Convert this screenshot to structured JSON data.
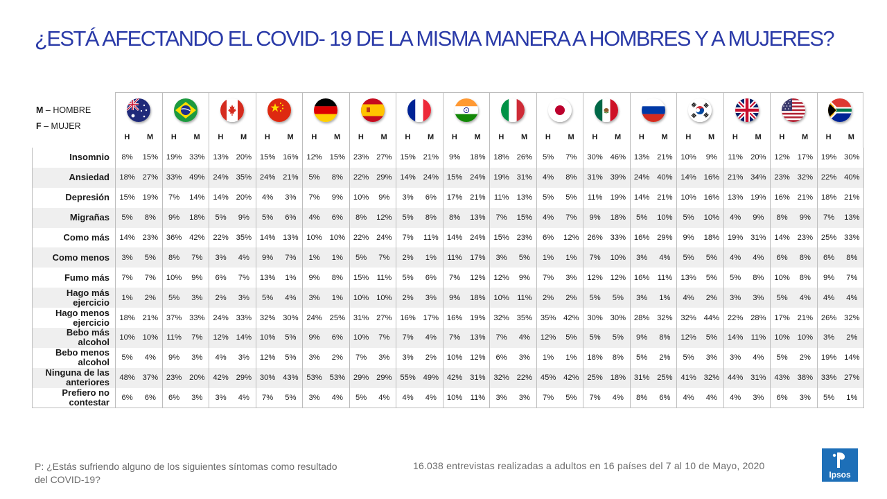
{
  "title": "¿ESTÁ AFECTANDO EL COVID- 19 DE LA MISMA MANERA  A HOMBRES Y A MUJERES?",
  "legend": {
    "m_key": "M",
    "m_text": " – HOMBRE",
    "f_key": "F",
    "f_text": " – MUJER"
  },
  "question": "P: ¿Estás sufriendo alguno de los siguientes síntomas como resultado del COVID-19?",
  "note": "16.038 entrevistas  realizadas a adultos  en 16 países del 7 al 10 de Mayo, 2020",
  "logo_text": "Ipsos",
  "colors": {
    "title": "#2a3aa8",
    "row_alt": "#efefef",
    "logo": "#1d6fb8"
  },
  "chart_data": {
    "type": "table",
    "countries": [
      "Australia",
      "Brazil",
      "Canada",
      "China",
      "Germany",
      "Spain",
      "France",
      "India",
      "Italy",
      "Japan",
      "Mexico",
      "Russia",
      "South Korea",
      "United Kingdom",
      "United States",
      "South Africa"
    ],
    "flags": [
      "australia-flag-icon",
      "brazil-flag-icon",
      "canada-flag-icon",
      "china-flag-icon",
      "germany-flag-icon",
      "spain-flag-icon",
      "france-flag-icon",
      "india-flag-icon",
      "italy-flag-icon",
      "japan-flag-icon",
      "mexico-flag-icon",
      "russia-flag-icon",
      "south-korea-flag-icon",
      "uk-flag-icon",
      "usa-flag-icon",
      "south-africa-flag-icon"
    ],
    "sub_headers": [
      "H",
      "M"
    ],
    "rows": [
      {
        "label": "Insomnio",
        "values": [
          "8%",
          "15%",
          "19%",
          "33%",
          "13%",
          "20%",
          "15%",
          "16%",
          "12%",
          "15%",
          "23%",
          "27%",
          "15%",
          "21%",
          "9%",
          "18%",
          "18%",
          "26%",
          "5%",
          "7%",
          "30%",
          "46%",
          "13%",
          "21%",
          "10%",
          "9%",
          "11%",
          "20%",
          "12%",
          "17%",
          "19%",
          "30%"
        ]
      },
      {
        "label": "Ansiedad",
        "values": [
          "18%",
          "27%",
          "33%",
          "49%",
          "24%",
          "35%",
          "24%",
          "21%",
          "5%",
          "8%",
          "22%",
          "29%",
          "14%",
          "24%",
          "15%",
          "24%",
          "19%",
          "31%",
          "4%",
          "8%",
          "31%",
          "39%",
          "24%",
          "40%",
          "14%",
          "16%",
          "21%",
          "34%",
          "23%",
          "32%",
          "22%",
          "40%"
        ]
      },
      {
        "label": "Depresión",
        "values": [
          "15%",
          "19%",
          "7%",
          "14%",
          "14%",
          "20%",
          "4%",
          "3%",
          "7%",
          "9%",
          "10%",
          "9%",
          "3%",
          "6%",
          "17%",
          "21%",
          "11%",
          "13%",
          "5%",
          "5%",
          "11%",
          "19%",
          "14%",
          "21%",
          "10%",
          "16%",
          "13%",
          "19%",
          "16%",
          "21%",
          "18%",
          "21%"
        ]
      },
      {
        "label": "Migrañas",
        "values": [
          "5%",
          "8%",
          "9%",
          "18%",
          "5%",
          "9%",
          "5%",
          "6%",
          "4%",
          "6%",
          "8%",
          "12%",
          "5%",
          "8%",
          "8%",
          "13%",
          "7%",
          "15%",
          "4%",
          "7%",
          "9%",
          "18%",
          "5%",
          "10%",
          "5%",
          "10%",
          "4%",
          "9%",
          "8%",
          "9%",
          "7%",
          "13%"
        ]
      },
      {
        "label": "Como más",
        "values": [
          "14%",
          "23%",
          "36%",
          "42%",
          "22%",
          "35%",
          "14%",
          "13%",
          "10%",
          "10%",
          "22%",
          "24%",
          "7%",
          "11%",
          "14%",
          "24%",
          "15%",
          "23%",
          "6%",
          "12%",
          "26%",
          "33%",
          "16%",
          "29%",
          "9%",
          "18%",
          "19%",
          "31%",
          "14%",
          "23%",
          "25%",
          "33%"
        ]
      },
      {
        "label": "Como menos",
        "values": [
          "3%",
          "5%",
          "8%",
          "7%",
          "3%",
          "4%",
          "9%",
          "7%",
          "1%",
          "1%",
          "5%",
          "7%",
          "2%",
          "1%",
          "11%",
          "17%",
          "3%",
          "5%",
          "1%",
          "1%",
          "7%",
          "10%",
          "3%",
          "4%",
          "5%",
          "5%",
          "4%",
          "4%",
          "6%",
          "8%",
          "6%",
          "8%"
        ]
      },
      {
        "label": "Fumo más",
        "values": [
          "7%",
          "7%",
          "10%",
          "9%",
          "6%",
          "7%",
          "13%",
          "1%",
          "9%",
          "8%",
          "15%",
          "11%",
          "5%",
          "6%",
          "7%",
          "12%",
          "12%",
          "9%",
          "7%",
          "3%",
          "12%",
          "12%",
          "16%",
          "11%",
          "13%",
          "5%",
          "5%",
          "8%",
          "10%",
          "8%",
          "9%",
          "7%"
        ]
      },
      {
        "label": "Hago más ejercicio",
        "values": [
          "1%",
          "2%",
          "5%",
          "3%",
          "2%",
          "3%",
          "5%",
          "4%",
          "3%",
          "1%",
          "10%",
          "10%",
          "2%",
          "3%",
          "9%",
          "18%",
          "10%",
          "11%",
          "2%",
          "2%",
          "5%",
          "5%",
          "3%",
          "1%",
          "4%",
          "2%",
          "3%",
          "3%",
          "5%",
          "4%",
          "4%",
          "4%"
        ]
      },
      {
        "label": "Hago menos ejercicio",
        "values": [
          "18%",
          "21%",
          "37%",
          "33%",
          "24%",
          "33%",
          "32%",
          "30%",
          "24%",
          "25%",
          "31%",
          "27%",
          "16%",
          "17%",
          "16%",
          "19%",
          "32%",
          "35%",
          "35%",
          "42%",
          "30%",
          "30%",
          "28%",
          "32%",
          "32%",
          "44%",
          "22%",
          "28%",
          "17%",
          "21%",
          "26%",
          "32%"
        ]
      },
      {
        "label": "Bebo más alcohol",
        "values": [
          "10%",
          "10%",
          "11%",
          "7%",
          "12%",
          "14%",
          "10%",
          "5%",
          "9%",
          "6%",
          "10%",
          "7%",
          "7%",
          "4%",
          "7%",
          "13%",
          "7%",
          "4%",
          "12%",
          "5%",
          "5%",
          "5%",
          "9%",
          "8%",
          "12%",
          "5%",
          "14%",
          "11%",
          "10%",
          "10%",
          "3%",
          "2%"
        ]
      },
      {
        "label": "Bebo menos alcohol",
        "values": [
          "5%",
          "4%",
          "9%",
          "3%",
          "4%",
          "3%",
          "12%",
          "5%",
          "3%",
          "2%",
          "7%",
          "3%",
          "3%",
          "2%",
          "10%",
          "12%",
          "6%",
          "3%",
          "1%",
          "1%",
          "18%",
          "8%",
          "5%",
          "2%",
          "5%",
          "3%",
          "3%",
          "4%",
          "5%",
          "2%",
          "19%",
          "14%"
        ]
      },
      {
        "label": "Ninguna de las anteriores",
        "values": [
          "48%",
          "37%",
          "23%",
          "20%",
          "42%",
          "29%",
          "30%",
          "43%",
          "53%",
          "53%",
          "29%",
          "29%",
          "55%",
          "49%",
          "42%",
          "31%",
          "32%",
          "22%",
          "45%",
          "42%",
          "25%",
          "18%",
          "31%",
          "25%",
          "41%",
          "32%",
          "44%",
          "31%",
          "43%",
          "38%",
          "33%",
          "27%"
        ]
      },
      {
        "label": "Prefiero no contestar",
        "values": [
          "6%",
          "6%",
          "6%",
          "3%",
          "3%",
          "4%",
          "7%",
          "5%",
          "3%",
          "4%",
          "5%",
          "4%",
          "4%",
          "4%",
          "10%",
          "11%",
          "3%",
          "3%",
          "7%",
          "5%",
          "7%",
          "4%",
          "8%",
          "6%",
          "4%",
          "4%",
          "4%",
          "3%",
          "6%",
          "3%",
          "5%",
          "1%"
        ]
      }
    ]
  }
}
